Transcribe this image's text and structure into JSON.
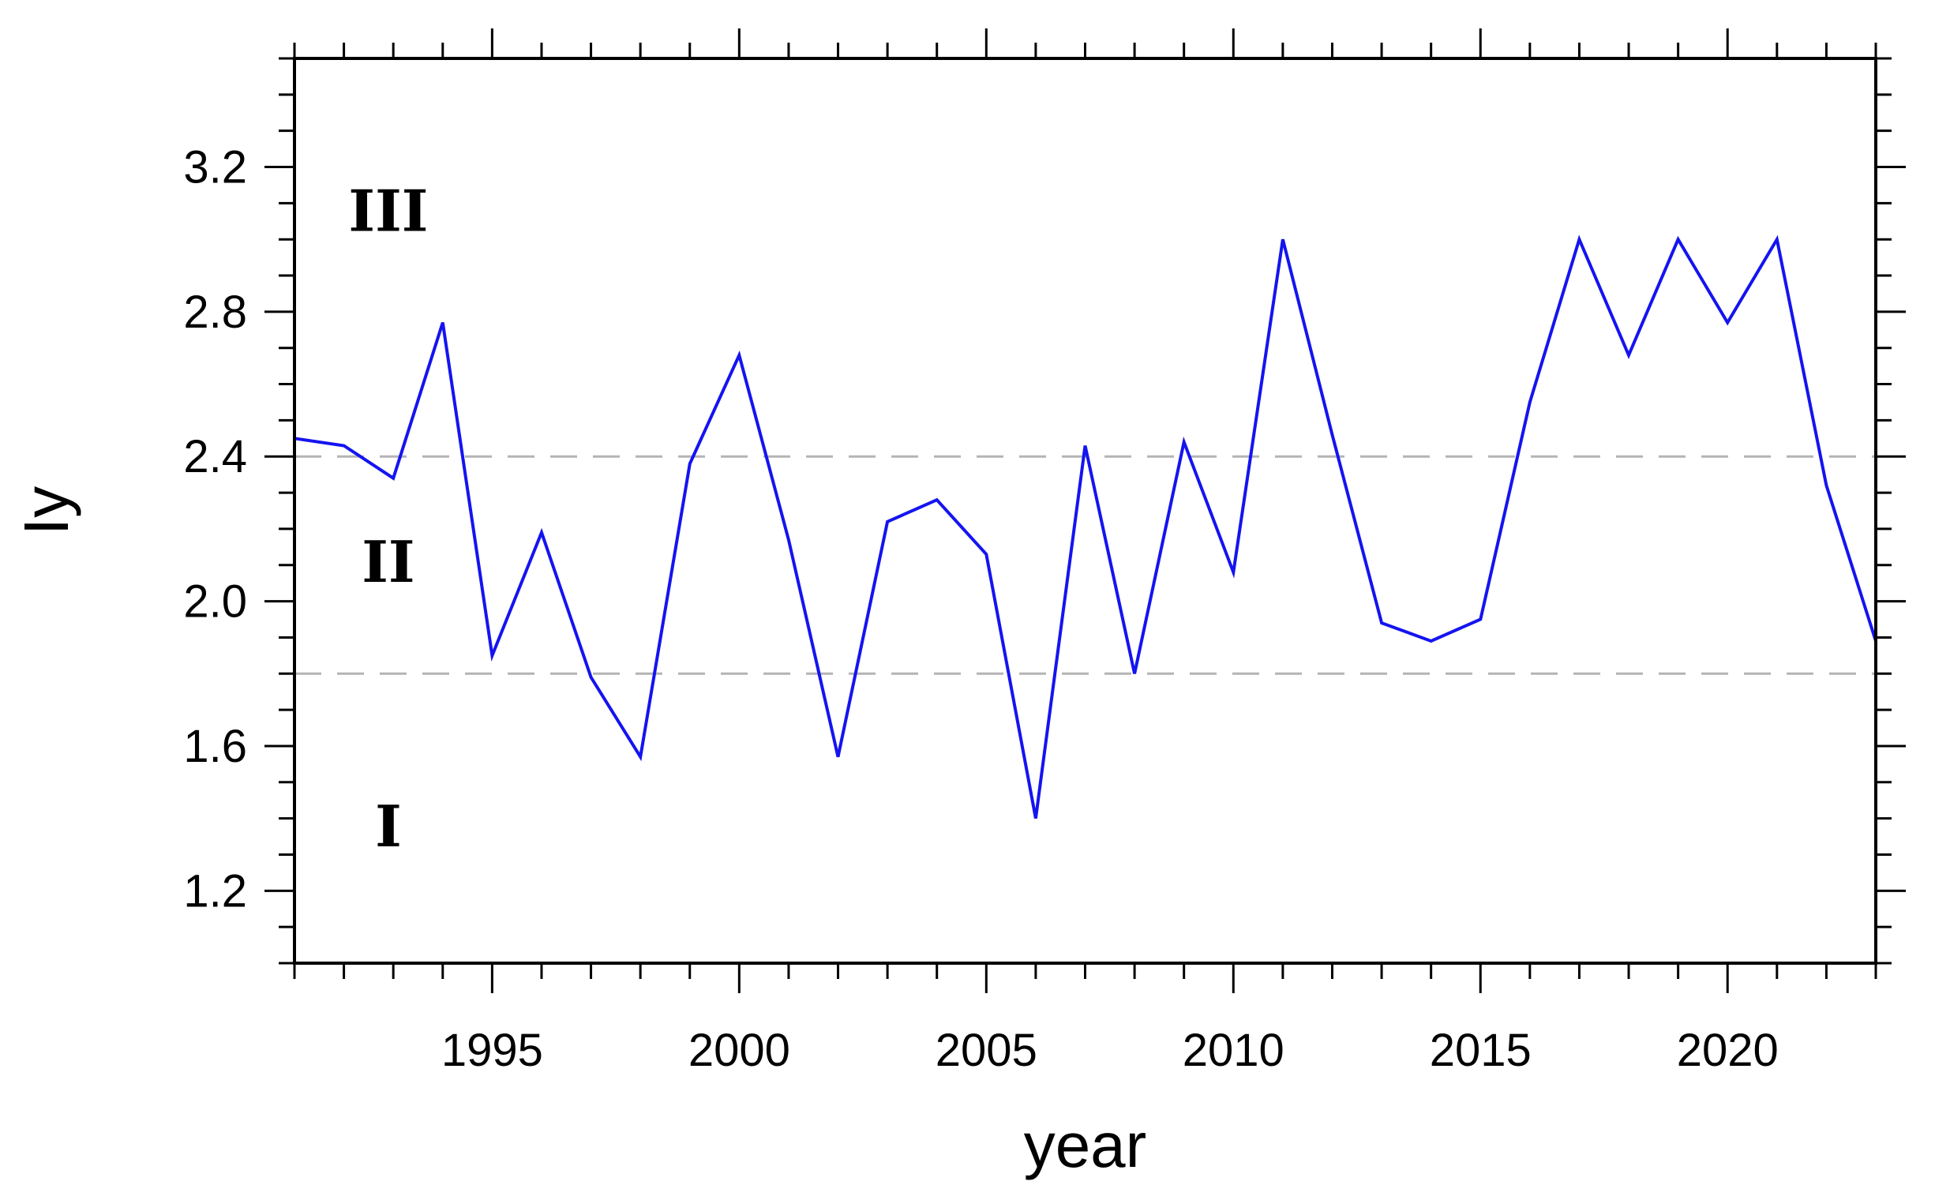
{
  "chart_data": {
    "type": "line",
    "title": "",
    "xlabel": "year",
    "ylabel": "Iy",
    "xlim": [
      1991,
      2023
    ],
    "ylim": [
      1.0,
      3.5
    ],
    "x_ticks": [
      1995,
      2000,
      2005,
      2010,
      2015,
      2020
    ],
    "y_ticks": [
      1.2,
      1.6,
      2.0,
      2.4,
      2.8,
      3.2
    ],
    "y_tick_labels": [
      "1.2",
      "1.6",
      "2.0",
      "2.4",
      "2.8",
      "3.2"
    ],
    "grid": false,
    "legend": "none",
    "series": [
      {
        "color": "#1414f0",
        "x": [
          1991,
          1992,
          1993,
          1994,
          1995,
          1996,
          1997,
          1998,
          1999,
          2000,
          2001,
          2002,
          2003,
          2004,
          2005,
          2006,
          2007,
          2008,
          2009,
          2010,
          2011,
          2012,
          2013,
          2014,
          2015,
          2016,
          2017,
          2018,
          2019,
          2020,
          2021,
          2022,
          2023
        ],
        "values": [
          2.45,
          2.43,
          2.34,
          2.77,
          1.85,
          2.19,
          1.79,
          1.57,
          2.38,
          2.68,
          2.17,
          1.57,
          2.22,
          2.28,
          2.13,
          1.4,
          2.43,
          1.8,
          2.44,
          2.08,
          3.0,
          2.46,
          1.94,
          1.89,
          1.95,
          2.55,
          3.0,
          2.68,
          3.0,
          2.77,
          3.0,
          2.32,
          1.89
        ]
      }
    ],
    "reference_lines": [
      {
        "y": 2.4,
        "color": "#b4b4b4",
        "style": "dashed"
      },
      {
        "y": 1.8,
        "color": "#b4b4b4",
        "style": "dashed"
      }
    ],
    "annotations": [
      {
        "text": "III",
        "x": 1992.9,
        "y": 3.08
      },
      {
        "text": "II",
        "x": 1992.9,
        "y": 2.11
      },
      {
        "text": "I",
        "x": 1992.9,
        "y": 1.38
      }
    ]
  }
}
